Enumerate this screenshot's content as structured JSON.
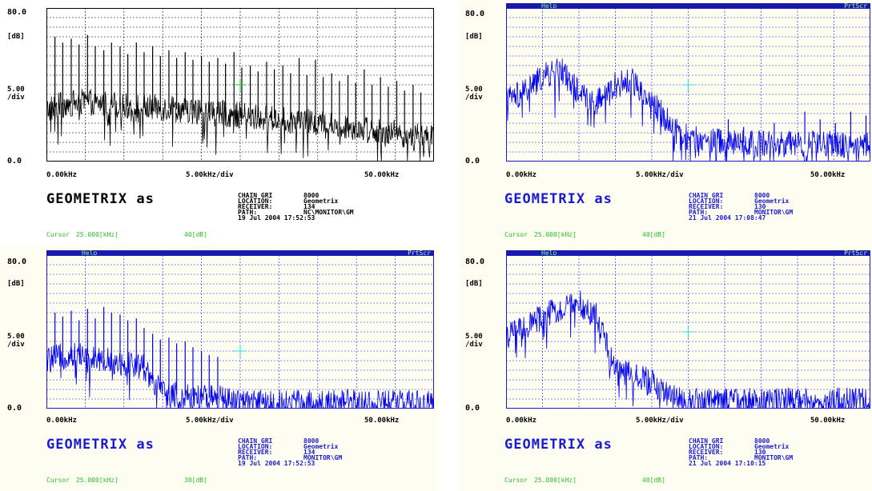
{
  "common": {
    "y_top": "80.0",
    "y_unit": "[dB]",
    "y_scale": "5.00\n/div",
    "y_bottom": "0.0",
    "x_left": "0.00kHz",
    "x_mid": "5.00kHz/div",
    "x_right": "50.00kHz",
    "brand": "GEOMETRIX as",
    "menu_help": "Help",
    "menu_prt": "PrtScr",
    "cursor_label": "Cursor",
    "cursor_value": "25.000[kHz]"
  },
  "colors": {
    "trace_black": "#000000",
    "trace_blue": "#0000ee",
    "grid_black": "#000000",
    "grid_blue": "#1a1ad0",
    "cursor_marker_green": "#22cc22",
    "cursor_marker_cyan": "#22dddd",
    "menu_bar": "#1a1aa8"
  },
  "panels": [
    {
      "id": "tl",
      "info": [
        {
          "key": "CHAIN GRI",
          "value": "8000"
        },
        {
          "key": "LOCATION:",
          "value": "Geometrix"
        },
        {
          "key": "RECEIVER:",
          "value": "134"
        },
        {
          "key": "PATH:",
          "value": "NC\\MONITOR\\GM"
        }
      ],
      "date": "19 Jul 2004 17:52:53",
      "cursor_db": "40[dB]"
    },
    {
      "id": "tr",
      "info": [
        {
          "key": "CHAIN GRI",
          "value": "8000"
        },
        {
          "key": "LOCATION:",
          "value": "Geometrix"
        },
        {
          "key": "RECEIVER:",
          "value": "130"
        },
        {
          "key": "PATH:",
          "value": "MONITOR\\GM"
        }
      ],
      "date": "21 Jul 2004 17:08:47",
      "cursor_db": "40[dB]"
    },
    {
      "id": "bl",
      "info": [
        {
          "key": "CHAIN GRI",
          "value": "8000"
        },
        {
          "key": "LOCATION:",
          "value": "Geometrix"
        },
        {
          "key": "RECEIVER:",
          "value": "134"
        },
        {
          "key": "PATH:",
          "value": "MONITOR\\GM"
        }
      ],
      "date": "19 Jul 2004 17:52:53",
      "cursor_db": "30[dB]"
    },
    {
      "id": "br",
      "info": [
        {
          "key": "CHAIN GRI",
          "value": "8000"
        },
        {
          "key": "LOCATION:",
          "value": "Geometrix"
        },
        {
          "key": "RECEIVER:",
          "value": "130"
        },
        {
          "key": "PATH:",
          "value": "MONITOR\\GM"
        }
      ],
      "date": "21 Jul 2004 17:10:15",
      "cursor_db": "40[dB]"
    }
  ],
  "chart_data": [
    {
      "type": "line",
      "panel": "tl",
      "xlabel": "5.00kHz/div",
      "ylabel": "[dB]",
      "xlim": [
        0,
        50
      ],
      "ylim": [
        0,
        80
      ],
      "grid": true,
      "series": [
        {
          "x_khz": [
            0,
            2.5,
            5,
            7.5,
            10,
            12.5,
            15,
            17.5,
            20,
            22.5,
            25,
            27.5,
            30,
            32.5,
            35,
            37.5,
            40,
            42.5,
            45,
            47.5,
            50
          ],
          "values": [
            27,
            30,
            31,
            30,
            29,
            28,
            28,
            27,
            26,
            25,
            24,
            23,
            22,
            21,
            20,
            19,
            18,
            17,
            15,
            13,
            12
          ]
        }
      ],
      "peaks_x_khz": [
        1.1,
        2.1,
        3.2,
        4.2,
        5.3,
        6.3,
        7.4,
        8.4,
        9.5,
        10.5,
        11.6,
        12.6,
        13.7,
        14.7,
        15.8,
        16.8,
        17.9,
        18.9,
        20.0,
        21.0,
        22.1,
        23.1,
        24.2,
        25.2,
        26.3,
        27.3,
        28.4,
        29.4,
        30.5,
        31.5,
        32.6,
        33.6,
        34.7,
        35.7,
        36.8,
        37.8,
        38.9,
        39.9,
        41.0,
        42.0,
        43.1,
        44.1,
        45.2,
        46.2,
        47.3,
        48.3
      ],
      "peaks_db": [
        65,
        62,
        64,
        61,
        66,
        60,
        58,
        62,
        60,
        56,
        62,
        57,
        60,
        55,
        58,
        54,
        57,
        53,
        55,
        52,
        54,
        51,
        57,
        49,
        50,
        47,
        52,
        48,
        50,
        46,
        54,
        45,
        53,
        44,
        46,
        42,
        45,
        41,
        48,
        40,
        44,
        39,
        42,
        37,
        40,
        36
      ],
      "cursor": {
        "x_khz": 25,
        "db": 40
      }
    },
    {
      "type": "line",
      "panel": "tr",
      "xlabel": "5.00kHz/div",
      "ylabel": "[dB]",
      "xlim": [
        0,
        50
      ],
      "ylim": [
        0,
        80
      ],
      "grid": true,
      "series": [
        {
          "x_khz": [
            0,
            2.5,
            5,
            7.5,
            10,
            12.5,
            15,
            17.5,
            20,
            22.5,
            25,
            27.5,
            30,
            32.5,
            35,
            37.5,
            40,
            42.5,
            45,
            47.5,
            50
          ],
          "values": [
            32,
            36,
            44,
            48,
            36,
            31,
            40,
            42,
            31,
            20,
            12,
            11,
            10,
            10,
            9,
            9,
            9,
            9,
            9,
            9,
            9
          ]
        }
      ],
      "peaks_x_khz": [
        30.5,
        32.6,
        36.8,
        41.0,
        43.1,
        45.2,
        47.3,
        49.4
      ],
      "peaks_db": [
        22,
        18,
        20,
        26,
        22,
        20,
        26,
        24
      ],
      "cursor": {
        "x_khz": 25,
        "db": 40
      }
    },
    {
      "type": "line",
      "panel": "bl",
      "xlabel": "5.00kHz/div",
      "ylabel": "[dB]",
      "xlim": [
        0,
        50
      ],
      "ylim": [
        0,
        80
      ],
      "grid": true,
      "series": [
        {
          "x_khz": [
            0,
            2.5,
            5,
            7.5,
            10,
            12.5,
            15,
            17.5,
            20,
            22.5,
            25,
            27.5,
            30,
            32.5,
            35,
            37.5,
            40,
            42.5,
            45,
            47.5,
            50
          ],
          "values": [
            25,
            28,
            28,
            26,
            24,
            22,
            8,
            7,
            6,
            5,
            4,
            3,
            3,
            3,
            3,
            3,
            3,
            3,
            3,
            3,
            3
          ]
        }
      ],
      "peaks_x_khz": [
        1.1,
        2.1,
        3.2,
        4.2,
        5.3,
        6.3,
        7.4,
        8.4,
        9.5,
        10.5,
        11.6,
        12.6,
        13.7,
        14.7,
        15.8,
        16.8,
        17.9,
        18.9,
        20.0,
        21.0,
        22.1
      ],
      "peaks_db": [
        50,
        48,
        51,
        46,
        52,
        47,
        53,
        50,
        49,
        46,
        47,
        42,
        39,
        36,
        37,
        34,
        35,
        32,
        30,
        28,
        27
      ],
      "cursor": {
        "x_khz": 25,
        "db": 30
      }
    },
    {
      "type": "line",
      "panel": "br",
      "xlabel": "5.00kHz/div",
      "ylabel": "[dB]",
      "xlim": [
        0,
        50
      ],
      "ylim": [
        0,
        80
      ],
      "grid": true,
      "series": [
        {
          "x_khz": [
            0,
            2.5,
            5,
            7.5,
            10,
            12.5,
            15,
            17.5,
            20,
            22.5,
            25,
            27.5,
            30,
            32.5,
            35,
            37.5,
            40,
            42.5,
            45,
            47.5,
            50
          ],
          "values": [
            37,
            42,
            48,
            52,
            55,
            48,
            20,
            18,
            14,
            6,
            4,
            4,
            4,
            4,
            4,
            4,
            4,
            4,
            4,
            4,
            4
          ]
        }
      ],
      "peaks_x_khz": [
        15.8,
        16.8,
        17.9,
        18.9
      ],
      "peaks_db": [
        22,
        24,
        23,
        20
      ],
      "cursor": {
        "x_khz": 25,
        "db": 40
      }
    }
  ]
}
